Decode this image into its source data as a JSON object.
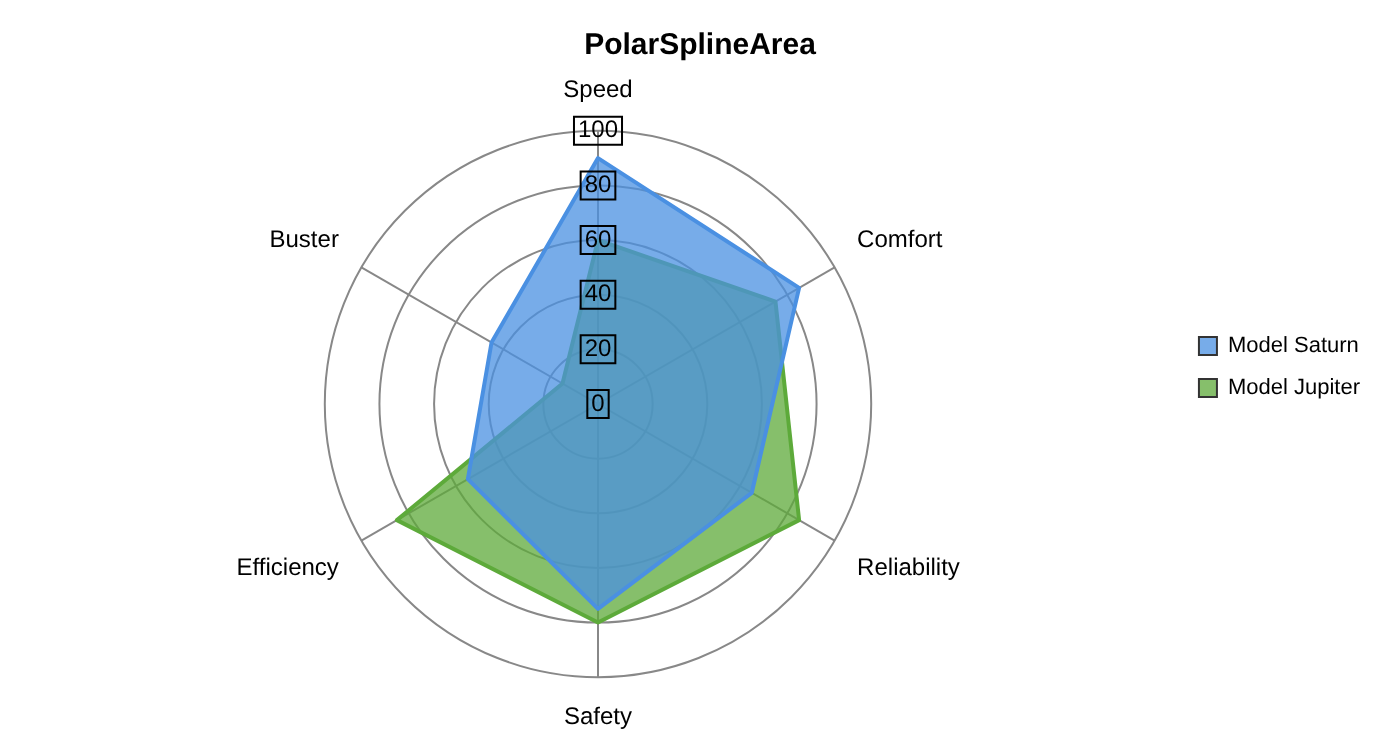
{
  "chart_data": {
    "type": "radar",
    "title": "PolarSplineArea",
    "categories": [
      "Speed",
      "Comfort",
      "Reliability",
      "Safety",
      "Efficiency",
      "Buster"
    ],
    "series": [
      {
        "name": "Model Saturn",
        "color": "#4a90e2",
        "values": [
          90,
          85,
          65,
          75,
          55,
          45
        ]
      },
      {
        "name": "Model Jupiter",
        "color": "#5daa3a",
        "values": [
          60,
          75,
          85,
          80,
          85,
          15
        ]
      }
    ],
    "ylim": [
      0,
      100
    ],
    "yticks": [
      0,
      20,
      40,
      60,
      80,
      100
    ],
    "grid": true,
    "legend": "right"
  }
}
